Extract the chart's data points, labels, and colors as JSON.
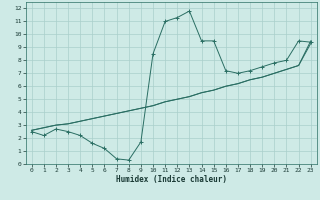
{
  "x": [
    0,
    1,
    2,
    3,
    4,
    5,
    6,
    7,
    8,
    9,
    10,
    11,
    12,
    13,
    14,
    15,
    16,
    17,
    18,
    19,
    20,
    21,
    22,
    23
  ],
  "y_curve": [
    2.5,
    2.2,
    2.7,
    2.5,
    2.2,
    1.6,
    1.2,
    0.4,
    0.3,
    1.7,
    8.5,
    11.0,
    11.3,
    11.8,
    9.5,
    9.5,
    7.2,
    7.0,
    7.2,
    7.5,
    7.8,
    8.0,
    9.5,
    9.4
  ],
  "y_linear1": [
    2.6,
    2.8,
    3.0,
    3.1,
    3.3,
    3.5,
    3.7,
    3.9,
    4.1,
    4.3,
    4.5,
    4.8,
    5.0,
    5.2,
    5.5,
    5.7,
    6.0,
    6.2,
    6.5,
    6.7,
    7.0,
    7.3,
    7.6,
    9.5
  ],
  "y_linear2": [
    2.6,
    2.8,
    3.0,
    3.1,
    3.3,
    3.5,
    3.7,
    3.9,
    4.1,
    4.3,
    4.5,
    4.8,
    5.0,
    5.2,
    5.5,
    5.7,
    6.0,
    6.2,
    6.5,
    6.7,
    7.0,
    7.3,
    7.6,
    9.3
  ],
  "line_color": "#2a6e63",
  "bg_color": "#ceeae6",
  "grid_color": "#aacfcb",
  "xlabel": "Humidex (Indice chaleur)",
  "xlim": [
    -0.5,
    23.5
  ],
  "ylim": [
    0,
    12.5
  ],
  "xticks": [
    0,
    1,
    2,
    3,
    4,
    5,
    6,
    7,
    8,
    9,
    10,
    11,
    12,
    13,
    14,
    15,
    16,
    17,
    18,
    19,
    20,
    21,
    22,
    23
  ],
  "yticks": [
    0,
    1,
    2,
    3,
    4,
    5,
    6,
    7,
    8,
    9,
    10,
    11,
    12
  ]
}
